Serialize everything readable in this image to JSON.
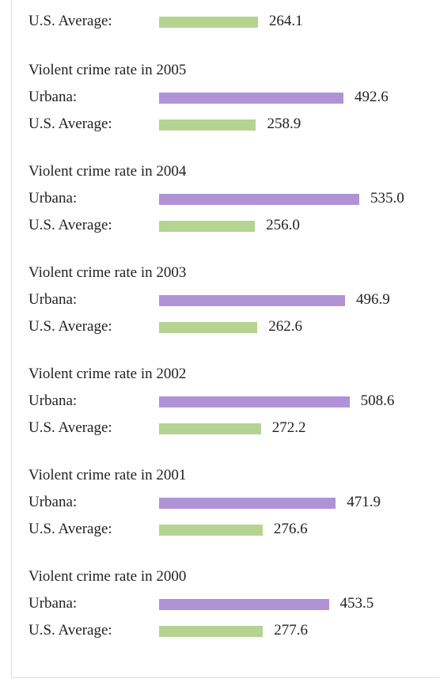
{
  "partial": {
    "rows": [
      {
        "label": "U.S. Average:",
        "value": 264.1,
        "value_label": "264.1",
        "color": "#b5d391"
      }
    ]
  },
  "groups": [
    {
      "title": "Violent crime rate in 2005",
      "rows": [
        {
          "label": "Urbana:",
          "value": 492.6,
          "value_label": "492.6",
          "color": "#b093d6"
        },
        {
          "label": "U.S. Average:",
          "value": 258.9,
          "value_label": "258.9",
          "color": "#b5d391"
        }
      ]
    },
    {
      "title": "Violent crime rate in 2004",
      "rows": [
        {
          "label": "Urbana:",
          "value": 535.0,
          "value_label": "535.0",
          "color": "#b093d6"
        },
        {
          "label": "U.S. Average:",
          "value": 256.0,
          "value_label": "256.0",
          "color": "#b5d391"
        }
      ]
    },
    {
      "title": "Violent crime rate in 2003",
      "rows": [
        {
          "label": "Urbana:",
          "value": 496.9,
          "value_label": "496.9",
          "color": "#b093d6"
        },
        {
          "label": "U.S. Average:",
          "value": 262.6,
          "value_label": "262.6",
          "color": "#b5d391"
        }
      ]
    },
    {
      "title": "Violent crime rate in 2002",
      "rows": [
        {
          "label": "Urbana:",
          "value": 508.6,
          "value_label": "508.6",
          "color": "#b093d6"
        },
        {
          "label": "U.S. Average:",
          "value": 272.2,
          "value_label": "272.2",
          "color": "#b5d391"
        }
      ]
    },
    {
      "title": "Violent crime rate in 2001",
      "rows": [
        {
          "label": "Urbana:",
          "value": 471.9,
          "value_label": "471.9",
          "color": "#b093d6"
        },
        {
          "label": "U.S. Average:",
          "value": 276.6,
          "value_label": "276.6",
          "color": "#b5d391"
        }
      ]
    },
    {
      "title": "Violent crime rate in 2000",
      "rows": [
        {
          "label": "Urbana:",
          "value": 453.5,
          "value_label": "453.5",
          "color": "#b093d6"
        },
        {
          "label": "U.S. Average:",
          "value": 277.6,
          "value_label": "277.6",
          "color": "#b5d391"
        }
      ]
    }
  ]
}
